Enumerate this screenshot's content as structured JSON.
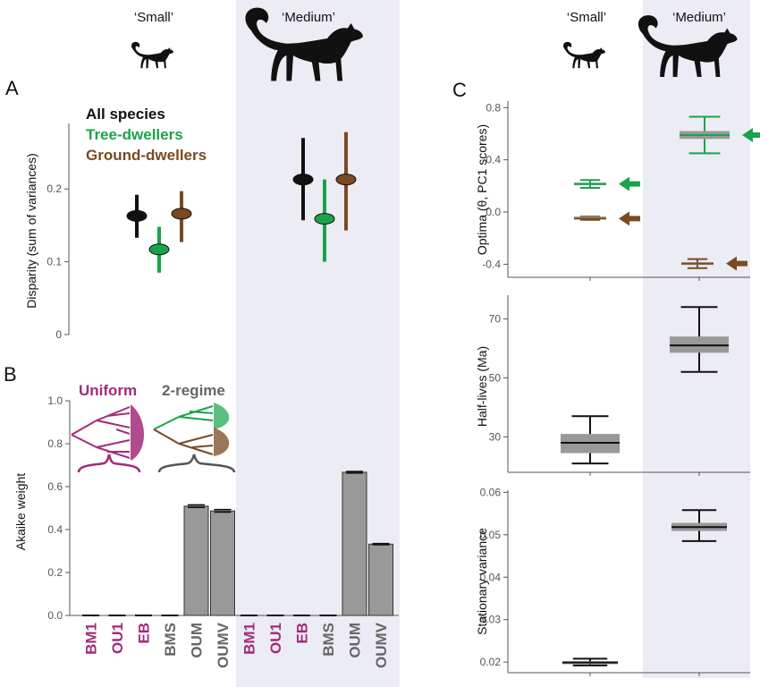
{
  "colors": {
    "all": "#111111",
    "tree": "#1aa34a",
    "ground": "#7a4a22",
    "uniform": "#a22b7a",
    "two_regime": "#666666",
    "bar": "#999999",
    "shade": "#ececf4",
    "box": "#999999"
  },
  "headers": {
    "left_small": "‘Small’",
    "left_medium": "‘Medium’",
    "right_small": "‘Small’",
    "right_medium": "‘Medium’"
  },
  "icons": [
    "small-lemur-silhouette-icon",
    "medium-lemur-silhouette-icon"
  ],
  "panels": {
    "a": "A",
    "b": "B",
    "c": "C"
  },
  "chart_data": [
    {
      "id": "A",
      "type": "scatter",
      "ylabel": "Disparity (sum of variances)",
      "ylim": [
        0,
        0.29
      ],
      "yticks": [
        0,
        0.1,
        0.2
      ],
      "ytick_labels": [
        "0",
        "0.1",
        "0.2"
      ],
      "groups": [
        "‘Small’",
        "‘Medium’"
      ],
      "legend": [
        "All species",
        "Tree-dwellers",
        "Ground-dwellers"
      ],
      "series": [
        {
          "name": "All species",
          "points": [
            {
              "group": "‘Small’",
              "y": 0.163,
              "lo": 0.133,
              "hi": 0.192
            },
            {
              "group": "‘Medium’",
              "y": 0.213,
              "lo": 0.157,
              "hi": 0.27
            }
          ]
        },
        {
          "name": "Tree-dwellers",
          "points": [
            {
              "group": "‘Small’",
              "y": 0.117,
              "lo": 0.085,
              "hi": 0.148
            },
            {
              "group": "‘Medium’",
              "y": 0.159,
              "lo": 0.1,
              "hi": 0.213
            }
          ]
        },
        {
          "name": "Ground-dwellers",
          "points": [
            {
              "group": "‘Small’",
              "y": 0.166,
              "lo": 0.127,
              "hi": 0.197
            },
            {
              "group": "‘Medium’",
              "y": 0.213,
              "lo": 0.143,
              "hi": 0.278
            }
          ]
        }
      ]
    },
    {
      "id": "B",
      "type": "bar",
      "ylabel": "Akaike weight",
      "ylim": [
        0,
        1.0
      ],
      "yticks": [
        0,
        0.2,
        0.4,
        0.6,
        0.8,
        1.0
      ],
      "ytick_labels": [
        "0.0",
        "0.2",
        "0.4",
        "0.6",
        "0.8",
        "1.0"
      ],
      "categories": [
        "BM1",
        "OU1",
        "EB",
        "BMS",
        "OUM",
        "OUMV",
        "BM1",
        "OU1",
        "EB",
        "BMS",
        "OUM",
        "OUMV"
      ],
      "category_groups": [
        "uniform",
        "uniform",
        "uniform",
        "two_regime",
        "two_regime",
        "two_regime",
        "uniform",
        "uniform",
        "uniform",
        "two_regime",
        "two_regime",
        "two_regime"
      ],
      "values": [
        0.0,
        0.0,
        0.0,
        0.0,
        0.509,
        0.487,
        0.0,
        0.0,
        0.0,
        0.0,
        0.667,
        0.332
      ],
      "errors": [
        0.001,
        0.001,
        0.001,
        0.001,
        0.006,
        0.006,
        0.001,
        0.001,
        0.001,
        0.001,
        0.004,
        0.003
      ],
      "annotations": [
        "Uniform",
        "2-regime"
      ]
    },
    {
      "id": "C-optima",
      "type": "box",
      "ylabel": "Optima (θ, PC1 scores)",
      "ylim": [
        -0.5,
        0.85
      ],
      "yticks": [
        -0.4,
        0.0,
        0.4,
        0.8
      ],
      "ytick_labels": [
        "-0.4",
        "0.0",
        "0.4",
        "0.8"
      ],
      "groups": [
        "‘Small’",
        "‘Medium’"
      ],
      "series": [
        {
          "name": "Tree-dwellers",
          "boxes": [
            {
              "group": "‘Small’",
              "min": 0.185,
              "q1": 0.205,
              "median": 0.215,
              "q3": 0.225,
              "max": 0.245,
              "arrow": 0.215
            },
            {
              "group": "‘Medium’",
              "min": 0.45,
              "q1": 0.56,
              "median": 0.59,
              "q3": 0.62,
              "max": 0.73,
              "arrow": 0.59
            }
          ]
        },
        {
          "name": "Ground-dwellers",
          "boxes": [
            {
              "group": "‘Small’",
              "min": -0.06,
              "q1": -0.055,
              "median": -0.05,
              "q3": -0.035,
              "max": -0.035,
              "arrow": -0.05
            },
            {
              "group": "‘Medium’",
              "min": -0.43,
              "q1": -0.405,
              "median": -0.395,
              "q3": -0.385,
              "max": -0.36,
              "arrow": -0.395
            }
          ]
        }
      ]
    },
    {
      "id": "C-half-lives",
      "type": "box",
      "ylabel": "Half-lives (Ma)",
      "ylim": [
        18,
        78
      ],
      "yticks": [
        30,
        50,
        70
      ],
      "ytick_labels": [
        "30",
        "50",
        "70"
      ],
      "groups": [
        "‘Small’",
        "‘Medium’"
      ],
      "boxes": [
        {
          "group": "‘Small’",
          "min": 21,
          "q1": 24.5,
          "median": 28,
          "q3": 31,
          "max": 37
        },
        {
          "group": "‘Medium’",
          "min": 52,
          "q1": 58.5,
          "median": 61,
          "q3": 64,
          "max": 74
        }
      ]
    },
    {
      "id": "C-stationary-variance",
      "type": "box",
      "ylabel": "Stationary variance",
      "ylim": [
        0.0175,
        0.0605
      ],
      "yticks": [
        0.02,
        0.03,
        0.04,
        0.05,
        0.06
      ],
      "ytick_labels": [
        "0.02",
        "0.03",
        "0.04",
        "0.05",
        "0.06"
      ],
      "groups": [
        "‘Small’",
        "‘Medium’"
      ],
      "boxes": [
        {
          "group": "‘Small’",
          "min": 0.0192,
          "q1": 0.0195,
          "median": 0.0199,
          "q3": 0.0202,
          "max": 0.0208
        },
        {
          "group": "‘Medium’",
          "min": 0.0485,
          "q1": 0.0509,
          "median": 0.0518,
          "q3": 0.0528,
          "max": 0.0558
        }
      ]
    }
  ]
}
